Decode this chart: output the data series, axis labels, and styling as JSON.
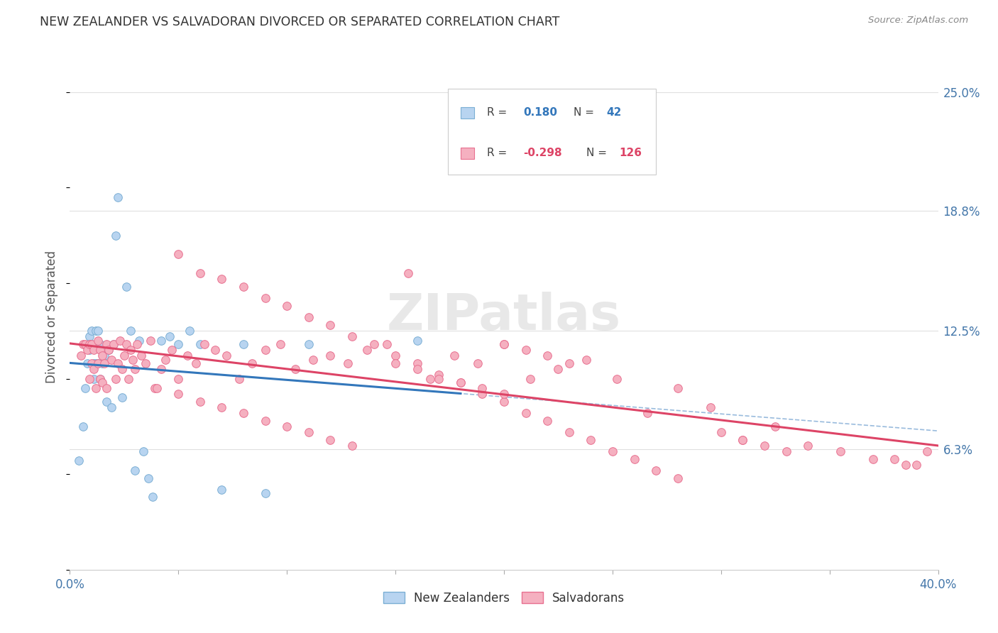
{
  "title": "NEW ZEALANDER VS SALVADORAN DIVORCED OR SEPARATED CORRELATION CHART",
  "source": "Source: ZipAtlas.com",
  "ylabel": "Divorced or Separated",
  "ytick_labels": [
    "6.3%",
    "12.5%",
    "18.8%",
    "25.0%"
  ],
  "ytick_values": [
    0.063,
    0.125,
    0.188,
    0.25
  ],
  "xmin": 0.0,
  "xmax": 0.4,
  "ymin": 0.0,
  "ymax": 0.265,
  "nz_color": "#b8d4f0",
  "nz_edge_color": "#7bafd4",
  "salv_color": "#f5b0c0",
  "salv_edge_color": "#e87090",
  "nz_line_color": "#3377bb",
  "salv_line_color": "#dd4466",
  "dashed_line_color": "#99bbdd",
  "watermark": "ZIPatlas",
  "background_color": "#ffffff",
  "grid_color": "#e0e0e0",
  "nz_x": [
    0.004,
    0.006,
    0.007,
    0.008,
    0.009,
    0.009,
    0.01,
    0.01,
    0.011,
    0.011,
    0.012,
    0.012,
    0.013,
    0.013,
    0.014,
    0.014,
    0.015,
    0.016,
    0.017,
    0.018,
    0.019,
    0.02,
    0.021,
    0.022,
    0.024,
    0.026,
    0.028,
    0.03,
    0.032,
    0.034,
    0.036,
    0.038,
    0.042,
    0.046,
    0.05,
    0.055,
    0.06,
    0.07,
    0.08,
    0.09,
    0.11,
    0.16
  ],
  "nz_y": [
    0.057,
    0.075,
    0.095,
    0.108,
    0.115,
    0.122,
    0.118,
    0.125,
    0.108,
    0.1,
    0.108,
    0.125,
    0.108,
    0.125,
    0.1,
    0.118,
    0.108,
    0.112,
    0.088,
    0.115,
    0.085,
    0.118,
    0.175,
    0.195,
    0.09,
    0.148,
    0.125,
    0.052,
    0.12,
    0.062,
    0.048,
    0.038,
    0.12,
    0.122,
    0.118,
    0.125,
    0.118,
    0.042,
    0.118,
    0.04,
    0.118,
    0.12
  ],
  "salv_x": [
    0.005,
    0.006,
    0.007,
    0.008,
    0.009,
    0.009,
    0.01,
    0.01,
    0.011,
    0.011,
    0.012,
    0.013,
    0.013,
    0.014,
    0.014,
    0.015,
    0.015,
    0.016,
    0.017,
    0.017,
    0.018,
    0.019,
    0.02,
    0.021,
    0.022,
    0.023,
    0.024,
    0.025,
    0.026,
    0.027,
    0.028,
    0.029,
    0.03,
    0.031,
    0.033,
    0.035,
    0.037,
    0.039,
    0.042,
    0.044,
    0.047,
    0.05,
    0.054,
    0.058,
    0.062,
    0.067,
    0.072,
    0.078,
    0.084,
    0.09,
    0.097,
    0.104,
    0.112,
    0.12,
    0.128,
    0.137,
    0.146,
    0.156,
    0.166,
    0.177,
    0.188,
    0.2,
    0.212,
    0.225,
    0.238,
    0.252,
    0.266,
    0.28,
    0.295,
    0.31,
    0.325,
    0.34,
    0.355,
    0.37,
    0.385,
    0.395,
    0.05,
    0.06,
    0.07,
    0.08,
    0.09,
    0.1,
    0.11,
    0.12,
    0.13,
    0.14,
    0.15,
    0.16,
    0.17,
    0.18,
    0.19,
    0.2,
    0.21,
    0.22,
    0.23,
    0.24,
    0.25,
    0.26,
    0.27,
    0.28,
    0.04,
    0.05,
    0.06,
    0.07,
    0.08,
    0.09,
    0.1,
    0.11,
    0.12,
    0.13,
    0.2,
    0.21,
    0.22,
    0.23,
    0.3,
    0.31,
    0.32,
    0.33,
    0.38,
    0.39,
    0.15,
    0.16,
    0.17,
    0.18,
    0.19,
    0.2
  ],
  "salv_y": [
    0.112,
    0.118,
    0.118,
    0.115,
    0.1,
    0.118,
    0.108,
    0.118,
    0.105,
    0.115,
    0.095,
    0.108,
    0.12,
    0.1,
    0.115,
    0.098,
    0.112,
    0.108,
    0.118,
    0.095,
    0.115,
    0.11,
    0.118,
    0.1,
    0.108,
    0.12,
    0.105,
    0.112,
    0.118,
    0.1,
    0.115,
    0.11,
    0.105,
    0.118,
    0.112,
    0.108,
    0.12,
    0.095,
    0.105,
    0.11,
    0.115,
    0.1,
    0.112,
    0.108,
    0.118,
    0.115,
    0.112,
    0.1,
    0.108,
    0.115,
    0.118,
    0.105,
    0.11,
    0.112,
    0.108,
    0.115,
    0.118,
    0.155,
    0.1,
    0.112,
    0.108,
    0.118,
    0.1,
    0.105,
    0.11,
    0.1,
    0.082,
    0.095,
    0.085,
    0.068,
    0.075,
    0.065,
    0.062,
    0.058,
    0.055,
    0.062,
    0.165,
    0.155,
    0.152,
    0.148,
    0.142,
    0.138,
    0.132,
    0.128,
    0.122,
    0.118,
    0.112,
    0.108,
    0.102,
    0.098,
    0.092,
    0.088,
    0.082,
    0.078,
    0.072,
    0.068,
    0.062,
    0.058,
    0.052,
    0.048,
    0.095,
    0.092,
    0.088,
    0.085,
    0.082,
    0.078,
    0.075,
    0.072,
    0.068,
    0.065,
    0.118,
    0.115,
    0.112,
    0.108,
    0.072,
    0.068,
    0.065,
    0.062,
    0.058,
    0.055,
    0.108,
    0.105,
    0.1,
    0.098,
    0.095,
    0.092
  ]
}
